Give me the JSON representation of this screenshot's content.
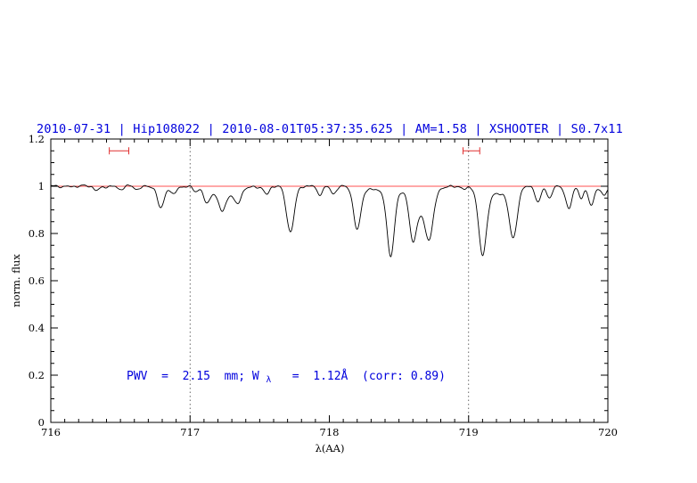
{
  "colors": {
    "title_blue": "#0000dd",
    "annotation_blue": "#0000dd",
    "marker_red": "#e03030",
    "continuum_red": "#ff5050",
    "spectrum_black": "#000000",
    "frame_black": "#000000",
    "dotted_line_gray": "#444444",
    "background": "#ffffff"
  },
  "annotation": {
    "part1": "PWV  =  2.15  mm; W",
    "sub": "λ",
    "part2": "  =  1.12Å  (corr: 0.89)"
  },
  "chart_data": {
    "type": "line",
    "title": "2010-07-31 | Hip108022 | 2010-08-01T05:37:35.625 | AM=1.58 | XSHOOTER | S0.7x11",
    "xlabel": "λ(AA)",
    "ylabel": "norm. flux",
    "xlim": [
      716,
      720
    ],
    "ylim": [
      0,
      1.2
    ],
    "x_ticks": [
      716,
      717,
      718,
      719,
      720
    ],
    "x_tick_labels": [
      "716",
      "717",
      "718",
      "719",
      "720"
    ],
    "x_minor_step": 0.1,
    "y_ticks": [
      0,
      0.2,
      0.4,
      0.6,
      0.8,
      1,
      1.2
    ],
    "y_tick_labels": [
      "0",
      "0.2",
      "0.4",
      "0.6",
      "0.8",
      "1",
      "1.2"
    ],
    "y_minor_step": 0.05,
    "grid": "none",
    "legend": "none",
    "continuum_level": 1.0,
    "continuum_line_y": 1.0,
    "dotted_vlines_x": [
      717,
      719
    ],
    "range_markers": [
      {
        "x1": 716.42,
        "x2": 716.56,
        "y": 1.15
      },
      {
        "x1": 718.96,
        "x2": 719.08,
        "y": 1.15
      }
    ],
    "noise_amplitude": 0.005,
    "sample_step": 0.004,
    "series": [
      {
        "name": "telluric-absorption-spectrum",
        "color": "#000000",
        "continuum": 1.0,
        "absorption_features": [
          {
            "c": 716.33,
            "d": 0.018,
            "s": 0.02
          },
          {
            "c": 716.5,
            "d": 0.015,
            "s": 0.02
          },
          {
            "c": 716.62,
            "d": 0.012,
            "s": 0.018
          },
          {
            "c": 716.79,
            "d": 0.095,
            "s": 0.024
          },
          {
            "c": 716.88,
            "d": 0.035,
            "s": 0.02
          },
          {
            "c": 717.04,
            "d": 0.02,
            "s": 0.02
          },
          {
            "c": 717.12,
            "d": 0.065,
            "s": 0.022
          },
          {
            "c": 717.23,
            "d": 0.075,
            "s": 0.026
          },
          {
            "c": 717.25,
            "d": 0.03,
            "s": 0.09
          },
          {
            "c": 717.34,
            "d": 0.06,
            "s": 0.024
          },
          {
            "c": 717.55,
            "d": 0.035,
            "s": 0.02
          },
          {
            "c": 717.72,
            "d": 0.19,
            "s": 0.028
          },
          {
            "c": 717.93,
            "d": 0.035,
            "s": 0.02
          },
          {
            "c": 718.03,
            "d": 0.03,
            "s": 0.018
          },
          {
            "c": 718.2,
            "d": 0.18,
            "s": 0.026
          },
          {
            "c": 718.44,
            "d": 0.28,
            "s": 0.026
          },
          {
            "c": 718.45,
            "d": 0.02,
            "s": 0.15
          },
          {
            "c": 718.6,
            "d": 0.16,
            "s": 0.024
          },
          {
            "c": 718.66,
            "d": 0.1,
            "s": 0.06
          },
          {
            "c": 718.72,
            "d": 0.16,
            "s": 0.028
          },
          {
            "c": 718.97,
            "d": 0.015,
            "s": 0.02
          },
          {
            "c": 719.1,
            "d": 0.275,
            "s": 0.028
          },
          {
            "c": 719.2,
            "d": 0.035,
            "s": 0.08
          },
          {
            "c": 719.32,
            "d": 0.21,
            "s": 0.028
          },
          {
            "c": 719.5,
            "d": 0.07,
            "s": 0.02
          },
          {
            "c": 719.58,
            "d": 0.05,
            "s": 0.018
          },
          {
            "c": 719.72,
            "d": 0.095,
            "s": 0.022
          },
          {
            "c": 719.81,
            "d": 0.05,
            "s": 0.018
          },
          {
            "c": 719.88,
            "d": 0.08,
            "s": 0.02
          },
          {
            "c": 719.97,
            "d": 0.04,
            "s": 0.02
          }
        ]
      }
    ]
  }
}
